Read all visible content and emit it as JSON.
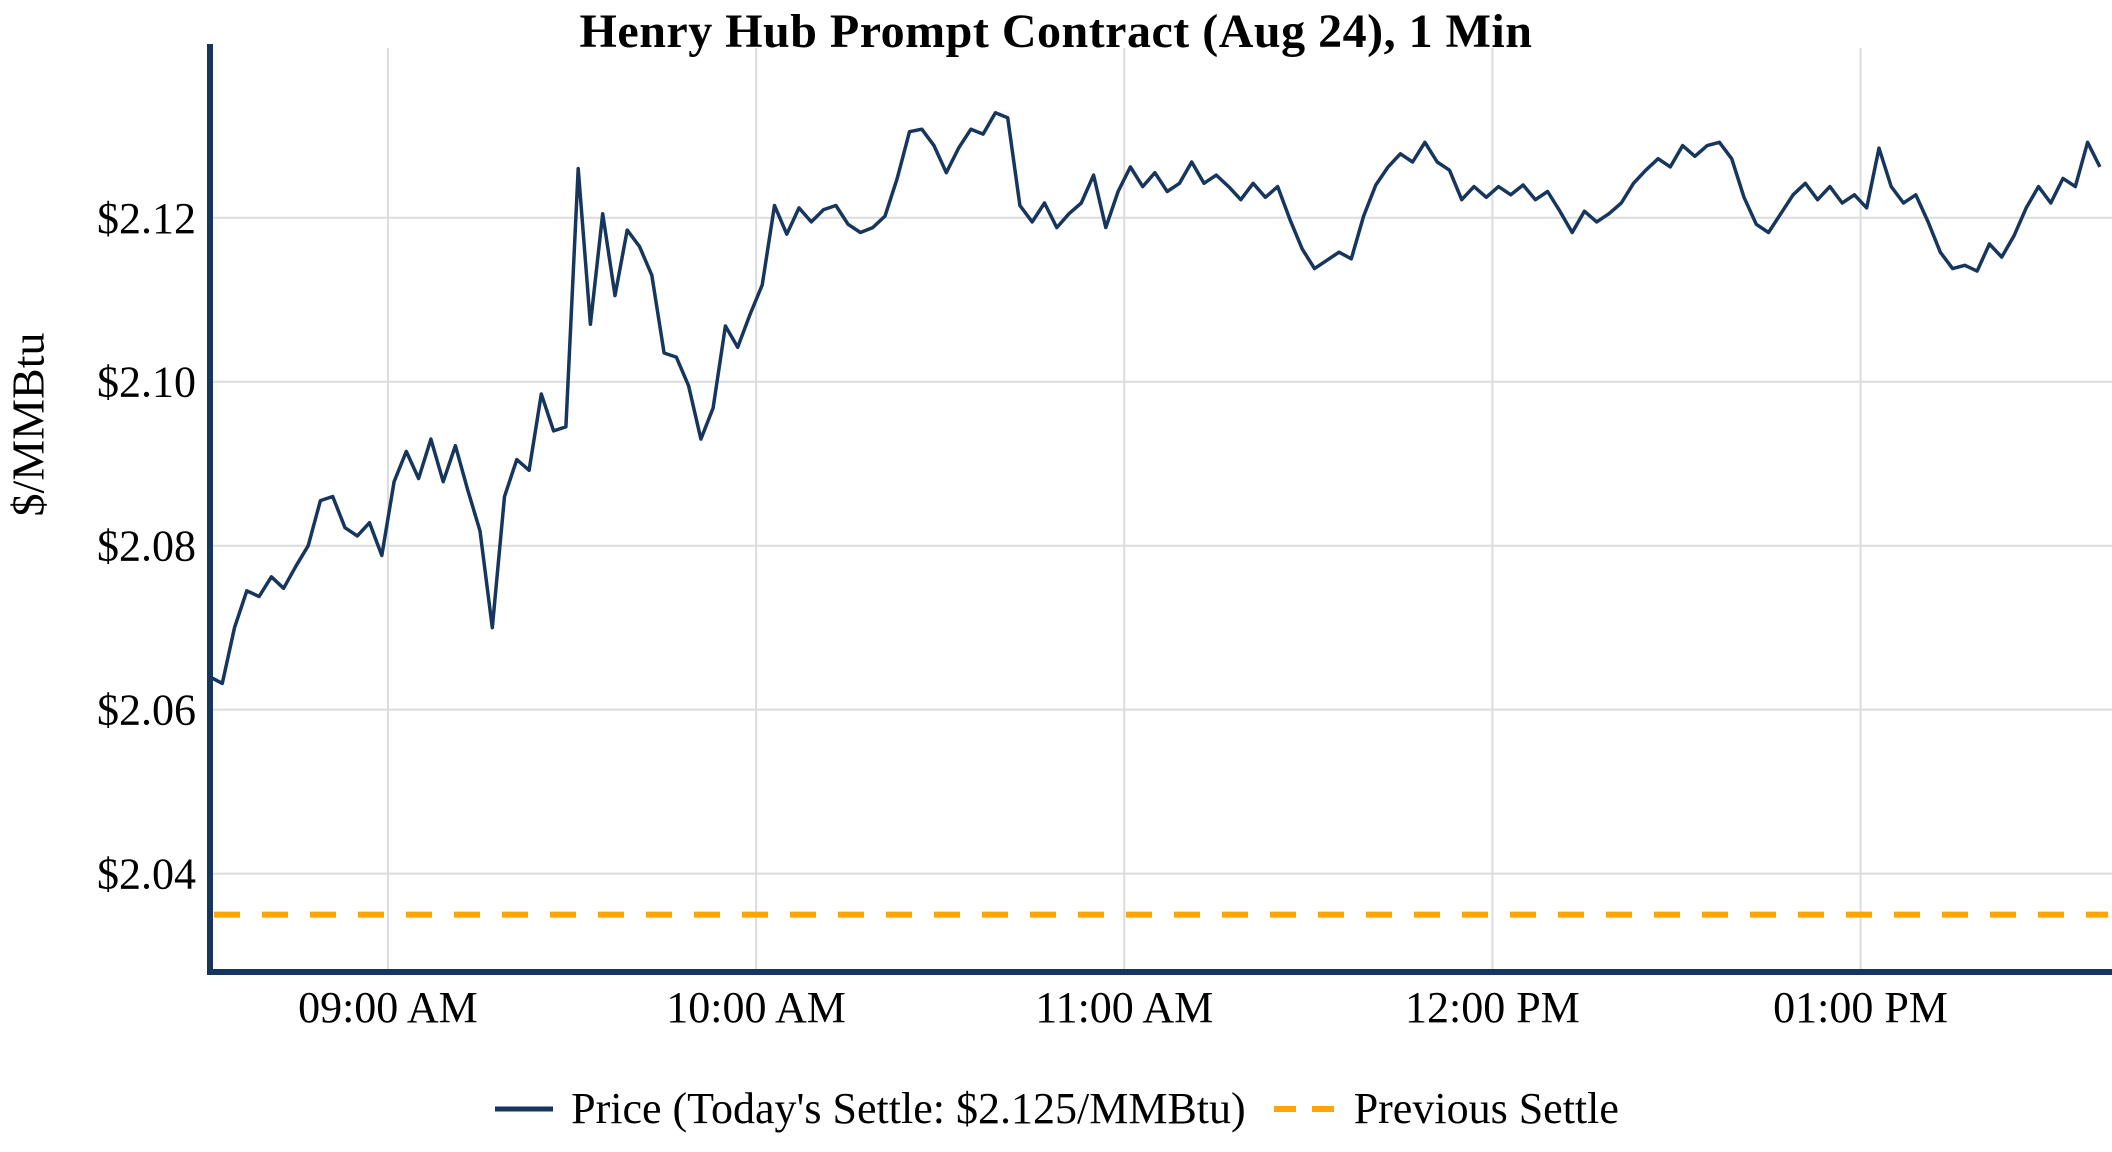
{
  "chart": {
    "title": "Henry Hub Prompt Contract (Aug 24), 1 Min",
    "ylabel": "$/MMBtu"
  },
  "legend": {
    "price_label": "Price (Today's Settle: $2.125/MMBtu)",
    "previous_settle_label": "Previous Settle"
  },
  "colors": {
    "price_line": "#17365d",
    "previous_settle": "#FFA500",
    "grid": "#dcdcdc",
    "axis": "#17365d",
    "text": "#000000"
  },
  "chart_data": {
    "type": "line",
    "title": "Henry Hub Prompt Contract (Aug 24), 1 Min",
    "xlabel": "",
    "ylabel": "$/MMBtu",
    "grid": true,
    "legend_position": "bottom",
    "x_tick_labels": [
      "09:00 AM",
      "10:00 AM",
      "11:00 AM",
      "12:00 PM",
      "01:00 PM"
    ],
    "x_tick_minutes": [
      540,
      600,
      660,
      720,
      780
    ],
    "x_range_minutes": [
      511,
      820
    ],
    "y_tick_labels": [
      "$2.04",
      "$2.06",
      "$2.08",
      "$2.10",
      "$2.12"
    ],
    "y_ticks": [
      2.04,
      2.06,
      2.08,
      2.1,
      2.12
    ],
    "ylim": [
      2.028,
      2.139
    ],
    "previous_settle": 2.035,
    "todays_settle": 2.125,
    "series": [
      {
        "name": "Price",
        "start_minute": 511,
        "step_minutes": 2,
        "values": [
          2.064,
          2.0632,
          2.07,
          2.0745,
          2.0738,
          2.0762,
          2.0748,
          2.0775,
          2.08,
          2.0855,
          2.086,
          2.0822,
          2.0812,
          2.0828,
          2.0788,
          2.0878,
          2.0915,
          2.0882,
          2.093,
          2.0878,
          2.0922,
          2.0868,
          2.0818,
          2.07,
          2.086,
          2.0905,
          2.0892,
          2.0985,
          2.094,
          2.0945,
          2.126,
          2.107,
          2.1205,
          2.1105,
          2.1185,
          2.1165,
          2.113,
          2.1035,
          2.103,
          2.0995,
          2.093,
          2.0968,
          2.1068,
          2.1042,
          2.1082,
          2.1118,
          2.1215,
          2.118,
          2.1212,
          2.1195,
          2.121,
          2.1215,
          2.1192,
          2.1182,
          2.1188,
          2.1202,
          2.1248,
          2.1305,
          2.1308,
          2.1288,
          2.1255,
          2.1285,
          2.1308,
          2.1302,
          2.1328,
          2.1322,
          2.1215,
          2.1195,
          2.1218,
          2.1188,
          2.1205,
          2.1218,
          2.1252,
          2.1188,
          2.1232,
          2.1262,
          2.1238,
          2.1255,
          2.1232,
          2.1242,
          2.1268,
          2.1242,
          2.1252,
          2.1238,
          2.1222,
          2.1242,
          2.1225,
          2.1238,
          2.1198,
          2.1162,
          2.1138,
          2.1148,
          2.1158,
          2.115,
          2.1202,
          2.124,
          2.1262,
          2.1278,
          2.1268,
          2.1292,
          2.1268,
          2.1258,
          2.1222,
          2.1238,
          2.1225,
          2.1238,
          2.1228,
          2.124,
          2.1222,
          2.1232,
          2.1208,
          2.1182,
          2.1208,
          2.1195,
          2.1205,
          2.1218,
          2.1242,
          2.1258,
          2.1272,
          2.1262,
          2.1288,
          2.1275,
          2.1288,
          2.1292,
          2.1272,
          2.1225,
          2.1192,
          2.1182,
          2.1205,
          2.1228,
          2.1242,
          2.1222,
          2.1238,
          2.1218,
          2.1228,
          2.1212,
          2.1285,
          2.1238,
          2.1218,
          2.1228,
          2.1195,
          2.1158,
          2.1138,
          2.1142,
          2.1135,
          2.1168,
          2.1152,
          2.1178,
          2.1212,
          2.1238,
          2.1218,
          2.1248,
          2.1238,
          2.1292,
          2.1262
        ]
      }
    ]
  }
}
